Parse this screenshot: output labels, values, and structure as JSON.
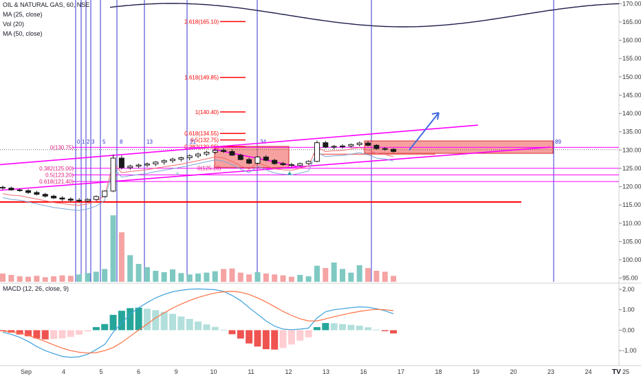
{
  "legend": {
    "symbol": "OIL & NATURAL GAS, 60, NSE",
    "ma25": "MA (25, close)",
    "vol": "Vol (20)",
    "ma50": "MA (50, close)",
    "macd": "MACD (12, 26, close, 9)"
  },
  "colors": {
    "up": "#1a1a1a",
    "down": "#1a1a1a",
    "fib_line": "#ff0000",
    "fib_text": "#e0187a",
    "magenta": "#ff00ff",
    "vline": "#3333cc",
    "rect_fill": "#ef5350",
    "vol_up": "#7fc9c2",
    "vol_down": "#f5a3a3",
    "macd_line": "#3da0db",
    "signal_line": "#ff7043",
    "hist_up_strong": "#26a69a",
    "hist_up_weak": "#b2dfdb",
    "hist_down_strong": "#ef5350",
    "hist_down_weak": "#ffcdd2",
    "arrow": "#4169e1"
  },
  "chart_data": {
    "type": "candlestick",
    "price_axis": {
      "ticks": [
        "170.00",
        "165.00",
        "160.00",
        "155.00",
        "150.00",
        "145.00",
        "140.00",
        "135.00",
        "130.00",
        "125.00",
        "120.00",
        "115.00",
        "110.00",
        "105.00",
        "100.00",
        "95.00"
      ],
      "range": [
        94,
        171
      ]
    },
    "macd_axis": {
      "ticks": [
        "2.00",
        "1.00",
        "0.00",
        "-1.00"
      ],
      "range": [
        -1.6,
        2.2
      ]
    },
    "x_labels": [
      "Sep",
      "4",
      "5",
      "6",
      "9",
      "10",
      "11",
      "12",
      "13",
      "16",
      "17",
      "18",
      "19",
      "20",
      "23",
      "24",
      "25"
    ],
    "candles": [
      [
        119.8,
        120.3,
        119.2,
        119.6
      ],
      [
        119.6,
        120.0,
        118.9,
        119.1
      ],
      [
        119.1,
        119.5,
        118.6,
        118.9
      ],
      [
        118.9,
        119.3,
        118.0,
        118.4
      ],
      [
        118.4,
        118.9,
        117.6,
        117.9
      ],
      [
        117.9,
        118.3,
        117.0,
        117.4
      ],
      [
        117.4,
        117.8,
        116.6,
        116.9
      ],
      [
        116.9,
        117.4,
        116.1,
        116.6
      ],
      [
        116.6,
        117.1,
        115.8,
        116.3
      ],
      [
        116.3,
        116.9,
        115.6,
        116.1
      ],
      [
        116.1,
        116.8,
        115.7,
        116.5
      ],
      [
        116.5,
        117.6,
        116.2,
        117.3
      ],
      [
        117.3,
        119.0,
        117.0,
        118.8
      ],
      [
        118.8,
        128.8,
        118.5,
        127.8
      ],
      [
        127.8,
        128.5,
        124.7,
        125.2
      ],
      [
        125.2,
        126.0,
        124.6,
        125.6
      ],
      [
        125.6,
        126.3,
        125.0,
        125.9
      ],
      [
        125.9,
        126.6,
        125.3,
        126.2
      ],
      [
        126.2,
        127.0,
        125.6,
        126.7
      ],
      [
        126.7,
        127.5,
        126.0,
        127.1
      ],
      [
        127.1,
        127.9,
        126.5,
        127.5
      ],
      [
        127.5,
        128.2,
        126.9,
        127.9
      ],
      [
        127.9,
        128.8,
        127.2,
        128.4
      ],
      [
        128.4,
        129.3,
        127.8,
        128.9
      ],
      [
        128.9,
        129.8,
        128.4,
        129.4
      ],
      [
        129.4,
        130.3,
        128.9,
        129.9
      ],
      [
        129.9,
        130.5,
        129.2,
        129.6
      ],
      [
        129.6,
        130.2,
        128.4,
        128.6
      ],
      [
        128.6,
        129.0,
        127.2,
        127.4
      ],
      [
        127.4,
        127.9,
        126.1,
        126.4
      ],
      [
        126.4,
        128.4,
        126.1,
        128.1
      ],
      [
        128.1,
        128.6,
        126.9,
        127.2
      ],
      [
        127.2,
        127.6,
        126.0,
        126.3
      ],
      [
        126.3,
        126.8,
        125.7,
        126.0
      ],
      [
        126.0,
        126.5,
        125.4,
        125.8
      ],
      [
        125.8,
        126.6,
        125.5,
        126.3
      ],
      [
        126.3,
        127.2,
        126.0,
        126.9
      ],
      [
        126.9,
        132.6,
        126.7,
        132.0
      ],
      [
        132.0,
        132.5,
        130.5,
        130.8
      ],
      [
        130.8,
        131.4,
        130.2,
        131.0
      ],
      [
        131.0,
        131.6,
        130.4,
        131.1
      ],
      [
        131.1,
        131.8,
        130.6,
        131.5
      ],
      [
        131.5,
        132.3,
        131.0,
        131.9
      ],
      [
        131.9,
        132.4,
        131.0,
        131.3
      ],
      [
        131.3,
        131.6,
        130.1,
        130.4
      ],
      [
        130.4,
        130.8,
        129.8,
        130.2
      ],
      [
        130.2,
        130.5,
        129.3,
        129.6
      ]
    ],
    "volumes": [
      1.8,
      1.5,
      1.2,
      1.1,
      1.3,
      1.0,
      1.2,
      1.4,
      1.3,
      1.6,
      1.9,
      2.2,
      2.8,
      14.5,
      10.8,
      5.8,
      3.9,
      3.2,
      2.4,
      2.1,
      2.7,
      1.9,
      1.6,
      1.8,
      2.0,
      2.3,
      2.8,
      2.9,
      2.0,
      1.6,
      2.1,
      1.8,
      1.6,
      1.4,
      1.1,
      1.5,
      1.2,
      3.5,
      3.0,
      4.2,
      2.8,
      2.0,
      3.6,
      3.0,
      2.4,
      2.2,
      1.3
    ],
    "vol_up": [
      0,
      0,
      0,
      0,
      0,
      0,
      0,
      0,
      0,
      1,
      1,
      1,
      1,
      1,
      0,
      1,
      1,
      1,
      1,
      1,
      1,
      1,
      1,
      1,
      1,
      1,
      0,
      0,
      0,
      0,
      1,
      0,
      0,
      0,
      0,
      1,
      1,
      1,
      0,
      1,
      1,
      1,
      1,
      0,
      0,
      0,
      0
    ],
    "macd": [
      -0.1,
      -0.2,
      -0.35,
      -0.55,
      -0.8,
      -1.0,
      -1.15,
      -1.28,
      -1.33,
      -1.3,
      -1.18,
      -0.95,
      -0.7,
      -0.1,
      0.35,
      0.78,
      1.1,
      1.35,
      1.58,
      1.75,
      1.88,
      1.95,
      2.0,
      2.02,
      2.0,
      1.98,
      1.9,
      1.7,
      1.45,
      1.1,
      0.78,
      0.45,
      0.2,
      0.05,
      0.02,
      0.05,
      0.1,
      0.6,
      0.9,
      1.0,
      1.05,
      1.1,
      1.14,
      1.12,
      1.05,
      0.95,
      0.8
    ],
    "signal": [
      -0.05,
      -0.08,
      -0.14,
      -0.25,
      -0.4,
      -0.55,
      -0.72,
      -0.88,
      -1.0,
      -1.08,
      -1.12,
      -1.1,
      -1.0,
      -0.85,
      -0.6,
      -0.3,
      0.0,
      0.3,
      0.6,
      0.85,
      1.08,
      1.28,
      1.45,
      1.6,
      1.72,
      1.82,
      1.88,
      1.9,
      1.86,
      1.75,
      1.58,
      1.38,
      1.15,
      0.92,
      0.72,
      0.56,
      0.45,
      0.45,
      0.55,
      0.66,
      0.75,
      0.84,
      0.92,
      0.98,
      1.02,
      1.0,
      0.96
    ],
    "fib_levels": [
      {
        "label": "2.618(165.10)",
        "value": 165.1
      },
      {
        "label": "1.618(149.85)",
        "value": 149.85
      },
      {
        "label": "1(140.40)",
        "value": 140.4
      },
      {
        "label": "0.618(134.55)",
        "value": 134.55
      },
      {
        "label": "0.5(132.75)",
        "value": 132.75
      },
      {
        "label": "0.382(130.95)",
        "value": 130.95
      }
    ],
    "fib_left_labels": [
      {
        "label": "0(130.75)",
        "value": 130.75
      },
      {
        "label": "0.382(125.00)",
        "value": 125.0
      },
      {
        "label": "0.5(123.20)",
        "value": 123.2
      },
      {
        "label": "0.618(121.40)",
        "value": 121.4
      }
    ],
    "fib_zero_label": {
      "label": "0(125.10)",
      "value": 125.1
    },
    "vline_labels": [
      "0",
      "1",
      "2",
      "3",
      "5",
      "8",
      "13",
      "21",
      "34",
      "89"
    ]
  }
}
